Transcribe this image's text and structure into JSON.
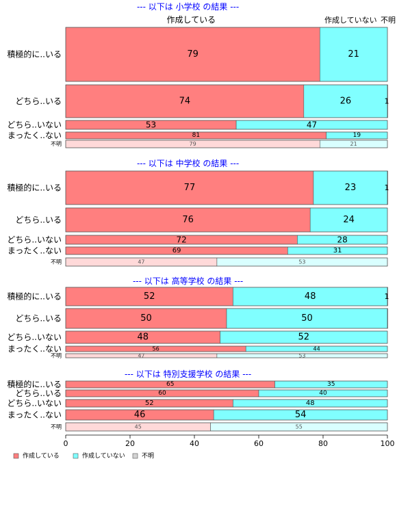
{
  "chart_data": {
    "type": "bar",
    "orientation": "horizontal-stacked-100",
    "column_headers": [
      "作成している",
      "作成していない",
      "不明"
    ],
    "xlim": [
      0,
      100
    ],
    "x_ticks": [
      0,
      20,
      40,
      60,
      80,
      100
    ],
    "legend": {
      "position": "bottom-left",
      "items": [
        "作成している",
        "作成していない",
        "不明"
      ]
    },
    "colors": {
      "creating": "#ff7f7f",
      "not_creating": "#80ffff",
      "unknown": "#d3d3d3",
      "creating_light": "#ffd9d9",
      "not_creating_light": "#d9ffff",
      "title": "#0000ff"
    },
    "panels": [
      {
        "title": "--- 以下は 小学校 の結果 ---",
        "rows": [
          {
            "label": "積極的に..いる",
            "values": [
              79,
              21,
              0
            ],
            "labels": [
              "79",
              "21",
              ""
            ]
          },
          {
            "label": "どちら..いる",
            "values": [
              74,
              26,
              0.6
            ],
            "labels": [
              "74",
              "26",
              "1"
            ]
          },
          {
            "label": "どちら..いない",
            "values": [
              53,
              47,
              0
            ],
            "labels": [
              "53",
              "47",
              ""
            ]
          },
          {
            "label": "まったく..ない",
            "values": [
              81,
              19,
              0
            ],
            "labels": [
              "81",
              "19",
              ""
            ]
          },
          {
            "label": "不明",
            "values": [
              79,
              21,
              0
            ],
            "labels": [
              "79",
              "21",
              ""
            ],
            "unknown_row": true
          }
        ]
      },
      {
        "title": "--- 以下は 中学校 の結果 ---",
        "rows": [
          {
            "label": "積極的に..いる",
            "values": [
              77,
              23,
              0.6
            ],
            "labels": [
              "77",
              "23",
              "1"
            ]
          },
          {
            "label": "どちら..いる",
            "values": [
              76,
              24,
              0
            ],
            "labels": [
              "76",
              "24",
              ""
            ]
          },
          {
            "label": "どちら..いない",
            "values": [
              72,
              28,
              0
            ],
            "labels": [
              "72",
              "28",
              ""
            ]
          },
          {
            "label": "まったく..ない",
            "values": [
              69,
              31,
              0
            ],
            "labels": [
              "69",
              "31",
              ""
            ]
          },
          {
            "label": "不明",
            "values": [
              47,
              53,
              0
            ],
            "labels": [
              "47",
              "53",
              ""
            ],
            "unknown_row": true
          }
        ]
      },
      {
        "title": "--- 以下は 高等学校 の結果 ---",
        "rows": [
          {
            "label": "積極的に..いる",
            "values": [
              52,
              48,
              0.6
            ],
            "labels": [
              "52",
              "48",
              "1"
            ]
          },
          {
            "label": "どちら..いる",
            "values": [
              50,
              50,
              0.4
            ],
            "labels": [
              "50",
              "50",
              ""
            ]
          },
          {
            "label": "どちら..いない",
            "values": [
              48,
              52,
              0
            ],
            "labels": [
              "48",
              "52",
              ""
            ]
          },
          {
            "label": "まったく..ない",
            "values": [
              56,
              44,
              0
            ],
            "labels": [
              "56",
              "44",
              ""
            ]
          },
          {
            "label": "不明",
            "values": [
              47,
              53,
              0
            ],
            "labels": [
              "47",
              "53",
              ""
            ],
            "unknown_row": true
          }
        ]
      },
      {
        "title": "--- 以下は 特別支援学校 の結果 ---",
        "rows": [
          {
            "label": "積極的に..いる",
            "values": [
              65,
              35,
              0
            ],
            "labels": [
              "65",
              "35",
              ""
            ]
          },
          {
            "label": "どちら..いる",
            "values": [
              60,
              40,
              0
            ],
            "labels": [
              "60",
              "40",
              ""
            ]
          },
          {
            "label": "どちら..いない",
            "values": [
              52,
              48,
              0
            ],
            "labels": [
              "52",
              "48",
              ""
            ]
          },
          {
            "label": "まったく..ない",
            "values": [
              46,
              54,
              0
            ],
            "labels": [
              "46",
              "54",
              ""
            ]
          },
          {
            "label": "不明",
            "values": [
              45,
              55,
              0
            ],
            "labels": [
              "45",
              "55",
              ""
            ],
            "unknown_row": true
          }
        ]
      }
    ]
  }
}
